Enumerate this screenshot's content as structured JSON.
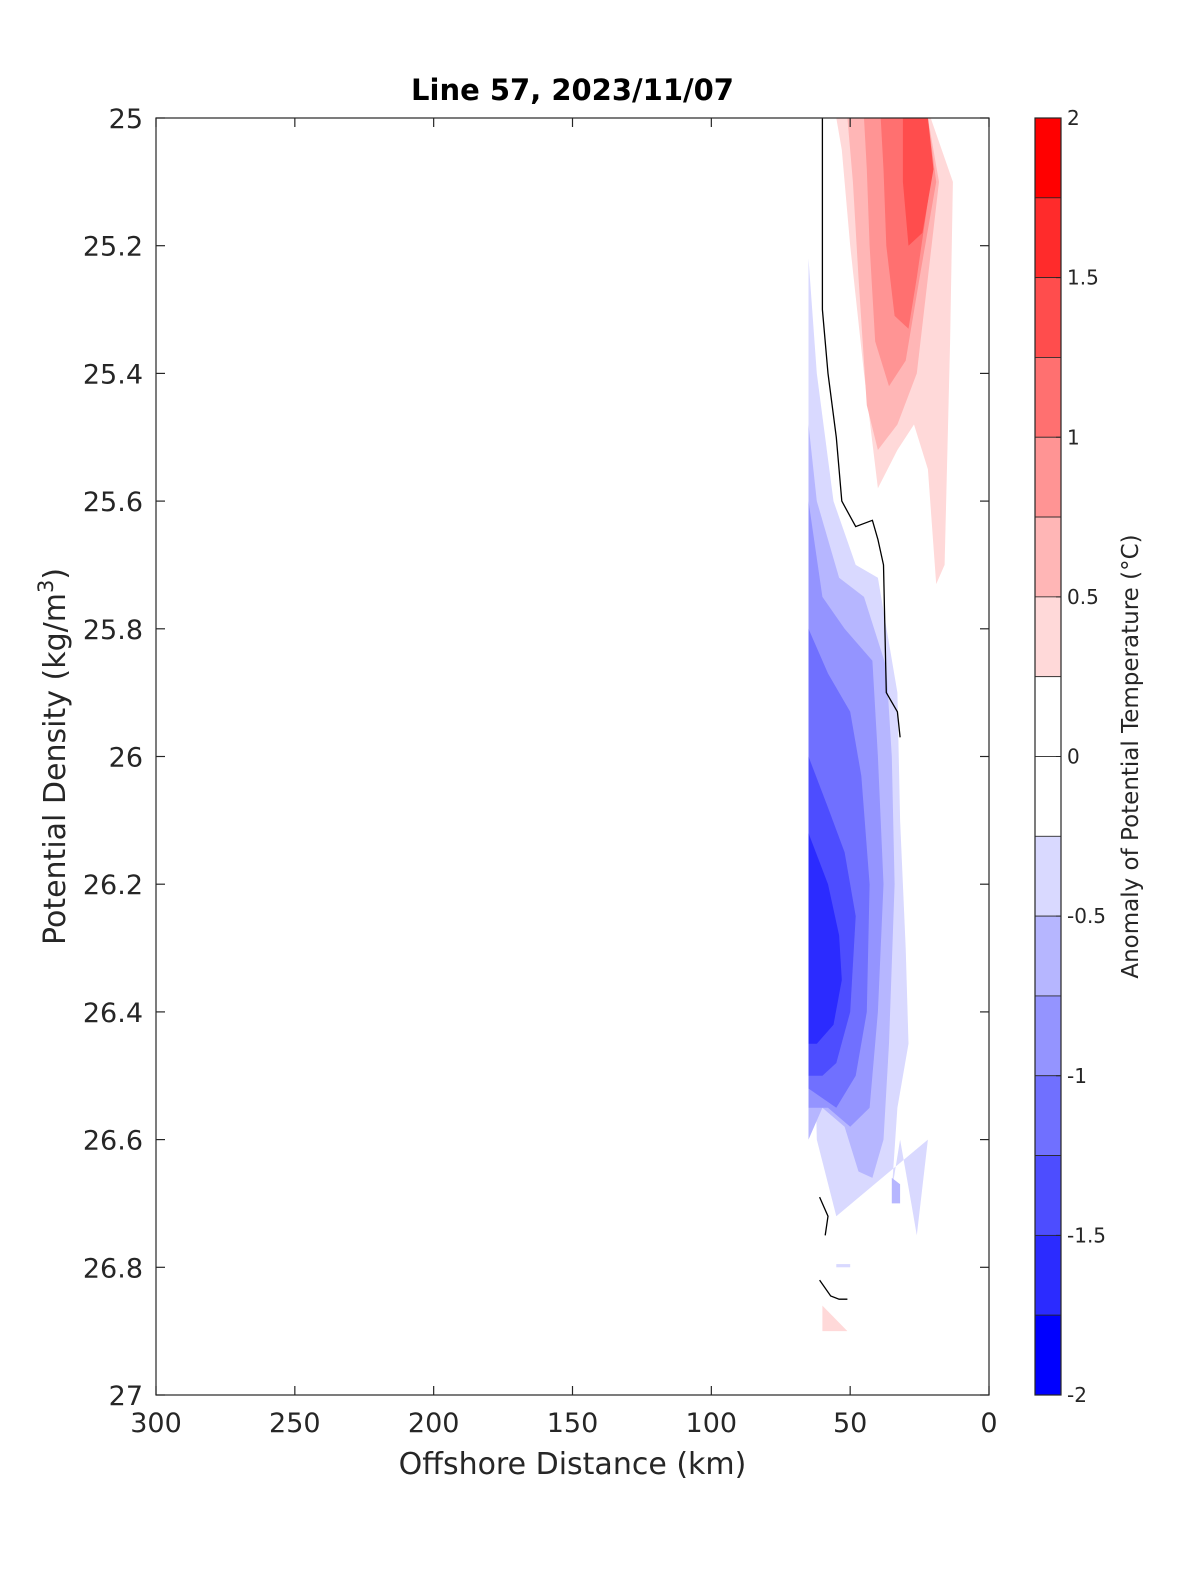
{
  "chart_data": {
    "type": "contourf",
    "title": "Line 57, 2023/11/07",
    "xlabel": "Offshore Distance (km)",
    "ylabel": "Potential Density (kg/m3)",
    "ylabel_base": "Potential Density (kg/m",
    "ylabel_sup": "3",
    "ylabel_close": ")",
    "colorbar_label": "Anomaly of Potential Temperature (°C)",
    "xlim": [
      300,
      0
    ],
    "x_reversed": true,
    "ylim": [
      25,
      27
    ],
    "y_reversed": true,
    "x_ticks": [
      300,
      250,
      200,
      150,
      100,
      50,
      0
    ],
    "y_ticks": [
      25,
      25.2,
      25.4,
      25.6,
      25.8,
      26,
      26.2,
      26.4,
      26.6,
      26.8,
      27
    ],
    "y_tick_labels": [
      "25",
      "25.2",
      "25.4",
      "25.6",
      "25.8",
      "26",
      "26.2",
      "26.4",
      "26.6",
      "26.8",
      "27"
    ],
    "colorbar": {
      "range": [
        -2,
        2
      ],
      "ticks": [
        2,
        1.5,
        1,
        0.5,
        0,
        -0.5,
        -1,
        -1.5,
        -2
      ],
      "tick_labels": [
        "2",
        "1.5",
        "1",
        "0.5",
        "0",
        "-0.5",
        "-1",
        "-1.5",
        "-2"
      ],
      "levels": [
        {
          "min": 1.75,
          "max": 2.0,
          "color": "#ff0000"
        },
        {
          "min": 1.5,
          "max": 1.75,
          "color": "#ff2b2b"
        },
        {
          "min": 1.25,
          "max": 1.5,
          "color": "#ff4d4d"
        },
        {
          "min": 1.0,
          "max": 1.25,
          "color": "#ff7070"
        },
        {
          "min": 0.75,
          "max": 1.0,
          "color": "#ff9494"
        },
        {
          "min": 0.5,
          "max": 0.75,
          "color": "#ffb6b6"
        },
        {
          "min": 0.25,
          "max": 0.5,
          "color": "#ffd9d9"
        },
        {
          "min": 0.0,
          "max": 0.25,
          "color": "#ffffff"
        },
        {
          "min": -0.25,
          "max": 0.0,
          "color": "#ffffff"
        },
        {
          "min": -0.5,
          "max": -0.25,
          "color": "#d9d9ff"
        },
        {
          "min": -0.75,
          "max": -0.5,
          "color": "#b6b6ff"
        },
        {
          "min": -1.0,
          "max": -0.75,
          "color": "#9494ff"
        },
        {
          "min": -1.25,
          "max": -1.0,
          "color": "#7070ff"
        },
        {
          "min": -1.5,
          "max": -1.25,
          "color": "#4d4dff"
        },
        {
          "min": -1.75,
          "max": -1.5,
          "color": "#2b2bff"
        },
        {
          "min": -2.0,
          "max": -1.75,
          "color": "#0000ff"
        }
      ]
    },
    "contour_regions": [
      {
        "level": 0.375,
        "color": "#ffd9d9",
        "points": [
          [
            55,
            25
          ],
          [
            21,
            25
          ],
          [
            13,
            25.1
          ],
          [
            14,
            25.35
          ],
          [
            16,
            25.7
          ],
          [
            19,
            25.73
          ],
          [
            22,
            25.55
          ],
          [
            27,
            25.48
          ],
          [
            33,
            25.52
          ],
          [
            40,
            25.58
          ],
          [
            45,
            25.4
          ],
          [
            50,
            25.2
          ],
          [
            53,
            25.05
          ]
        ]
      },
      {
        "level": 0.625,
        "color": "#ffb6b6",
        "points": [
          [
            51,
            25
          ],
          [
            22,
            25
          ],
          [
            18,
            25.1
          ],
          [
            22,
            25.25
          ],
          [
            26,
            25.4
          ],
          [
            33,
            25.48
          ],
          [
            40,
            25.52
          ],
          [
            44,
            25.45
          ],
          [
            47,
            25.25
          ],
          [
            49,
            25.1
          ]
        ]
      },
      {
        "level": 0.875,
        "color": "#ff9494",
        "points": [
          [
            45,
            25
          ],
          [
            22,
            25
          ],
          [
            19,
            25.1
          ],
          [
            25,
            25.25
          ],
          [
            30,
            25.38
          ],
          [
            36,
            25.42
          ],
          [
            41,
            25.35
          ],
          [
            43,
            25.2
          ],
          [
            44,
            25.08
          ]
        ]
      },
      {
        "level": 1.125,
        "color": "#ff7070",
        "points": [
          [
            39,
            25
          ],
          [
            22,
            25
          ],
          [
            21,
            25.1
          ],
          [
            26,
            25.25
          ],
          [
            29,
            25.33
          ],
          [
            34,
            25.31
          ],
          [
            37,
            25.2
          ],
          [
            38,
            25.08
          ]
        ]
      },
      {
        "level": 1.375,
        "color": "#ff4d4d",
        "points": [
          [
            31,
            25
          ],
          [
            22,
            25
          ],
          [
            20,
            25.08
          ],
          [
            24,
            25.18
          ],
          [
            29,
            25.2
          ],
          [
            31,
            25.1
          ]
        ]
      },
      {
        "level": -0.375,
        "color": "#d9d9ff",
        "points": [
          [
            65,
            25.22
          ],
          [
            62,
            25.4
          ],
          [
            56,
            25.6
          ],
          [
            48,
            25.7
          ],
          [
            40,
            25.72
          ],
          [
            33,
            25.9
          ],
          [
            32,
            26.1
          ],
          [
            30,
            26.3
          ],
          [
            29,
            26.45
          ],
          [
            33,
            26.55
          ],
          [
            35,
            26.68
          ],
          [
            32,
            26.6
          ],
          [
            30,
            26.65
          ],
          [
            28,
            26.7
          ],
          [
            26,
            26.75
          ],
          [
            22,
            26.6
          ],
          [
            55,
            26.72
          ],
          [
            62,
            26.6
          ],
          [
            65,
            26.0
          ],
          [
            65,
            25.5
          ]
        ]
      },
      {
        "level": -0.625,
        "color": "#b6b6ff",
        "points": [
          [
            65,
            25.48
          ],
          [
            62,
            25.6
          ],
          [
            54,
            25.72
          ],
          [
            45,
            25.75
          ],
          [
            37,
            25.86
          ],
          [
            35,
            26.0
          ],
          [
            34,
            26.2
          ],
          [
            36,
            26.45
          ],
          [
            38,
            26.6
          ],
          [
            42,
            26.66
          ],
          [
            47,
            26.65
          ],
          [
            52,
            26.58
          ],
          [
            60,
            26.55
          ],
          [
            65,
            26.6
          ]
        ]
      },
      {
        "level": -0.875,
        "color": "#9494ff",
        "points": [
          [
            65,
            25.6
          ],
          [
            60,
            25.75
          ],
          [
            52,
            25.8
          ],
          [
            42,
            25.85
          ],
          [
            40,
            26.0
          ],
          [
            38,
            26.2
          ],
          [
            40,
            26.4
          ],
          [
            43,
            26.55
          ],
          [
            50,
            26.58
          ],
          [
            58,
            26.55
          ],
          [
            65,
            26.55
          ]
        ]
      },
      {
        "level": -1.125,
        "color": "#7070ff",
        "points": [
          [
            65,
            25.8
          ],
          [
            58,
            25.87
          ],
          [
            50,
            25.93
          ],
          [
            46,
            26.03
          ],
          [
            43,
            26.2
          ],
          [
            44,
            26.4
          ],
          [
            48,
            26.5
          ],
          [
            55,
            26.55
          ],
          [
            65,
            26.52
          ]
        ]
      },
      {
        "level": -1.375,
        "color": "#4d4dff",
        "points": [
          [
            65,
            26.0
          ],
          [
            58,
            26.08
          ],
          [
            52,
            26.15
          ],
          [
            48,
            26.25
          ],
          [
            50,
            26.4
          ],
          [
            55,
            26.48
          ],
          [
            60,
            26.5
          ],
          [
            65,
            26.5
          ]
        ]
      },
      {
        "level": -1.625,
        "color": "#2b2bff",
        "points": [
          [
            65,
            26.12
          ],
          [
            58,
            26.2
          ],
          [
            54,
            26.28
          ],
          [
            53,
            26.35
          ],
          [
            56,
            26.42
          ],
          [
            62,
            26.45
          ],
          [
            65,
            26.45
          ]
        ]
      },
      {
        "level": -0.375,
        "color": "#b6b6ff",
        "points": [
          [
            35,
            26.66
          ],
          [
            32,
            26.67
          ],
          [
            32,
            26.7
          ],
          [
            35,
            26.7
          ]
        ]
      },
      {
        "level": -0.375,
        "color": "#d9d9ff",
        "points": [
          [
            55,
            26.795
          ],
          [
            50,
            26.795
          ],
          [
            50,
            26.8
          ],
          [
            55,
            26.8
          ]
        ]
      },
      {
        "level": 0.375,
        "color": "#ffd9d9",
        "points": [
          [
            60,
            26.86
          ],
          [
            60,
            26.9
          ],
          [
            51,
            26.9
          ]
        ]
      }
    ],
    "zero_contours": [
      [
        [
          60,
          25
        ],
        [
          60,
          25.3
        ],
        [
          58,
          25.4
        ],
        [
          55,
          25.5
        ],
        [
          53,
          25.6
        ],
        [
          48,
          25.64
        ],
        [
          42,
          25.63
        ],
        [
          40,
          25.66
        ],
        [
          38,
          25.7
        ],
        [
          37,
          25.9
        ],
        [
          33,
          25.93
        ],
        [
          32,
          25.97
        ]
      ],
      [
        [
          61,
          26.69
        ],
        [
          58,
          26.72
        ],
        [
          59,
          26.75
        ]
      ],
      [
        [
          61,
          26.82
        ],
        [
          57,
          26.845
        ],
        [
          54,
          26.85
        ],
        [
          51,
          26.85
        ]
      ]
    ]
  }
}
